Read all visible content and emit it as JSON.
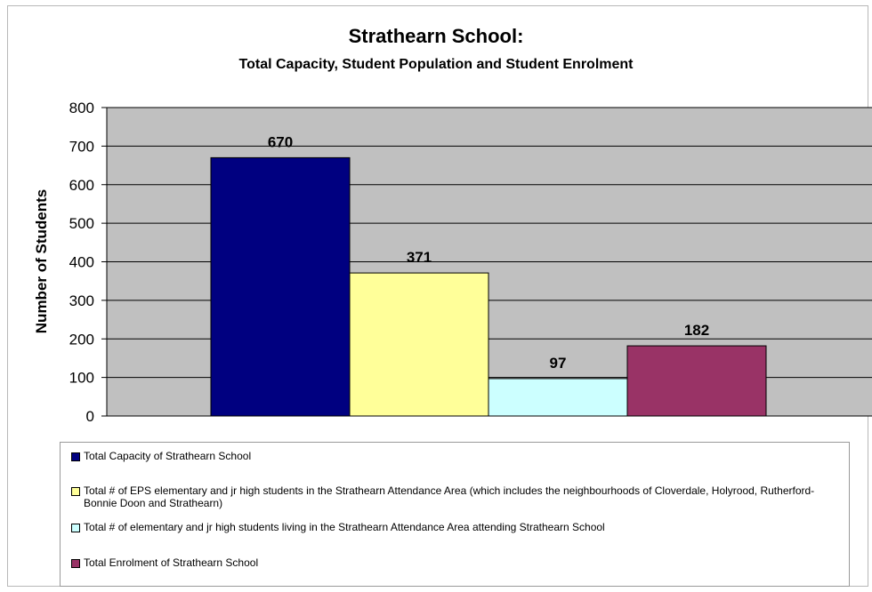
{
  "chart_data": {
    "type": "bar",
    "title": "Strathearn School:",
    "subtitle": "Total Capacity, Student Population and Student Enrolment",
    "xlabel": "",
    "ylabel": "Number of Students",
    "ylim": [
      0,
      800
    ],
    "yticks": [
      0,
      100,
      200,
      300,
      400,
      500,
      600,
      700,
      800
    ],
    "grid": true,
    "legend_position": "bottom",
    "series": [
      {
        "name": "Total Capacity of Strathearn School",
        "value": 670,
        "label": "670",
        "color": "#000080"
      },
      {
        "name": "Total # of EPS elementary and jr high students in the Strathearn Attendance Area (which includes the neighbourhoods of Cloverdale, Holyrood, Rutherford-Bonnie Doon and Strathearn)",
        "value": 371,
        "label": "371",
        "color": "#ffff99"
      },
      {
        "name": "Total # of elementary and jr high students living in the Strathearn Attendance Area attending Strathearn School",
        "value": 97,
        "label": "97",
        "color": "#ccffff"
      },
      {
        "name": "Total Enrolment of Strathearn School",
        "value": 182,
        "label": "182",
        "color": "#993366"
      }
    ],
    "plot_background": "#c0c0c0"
  }
}
